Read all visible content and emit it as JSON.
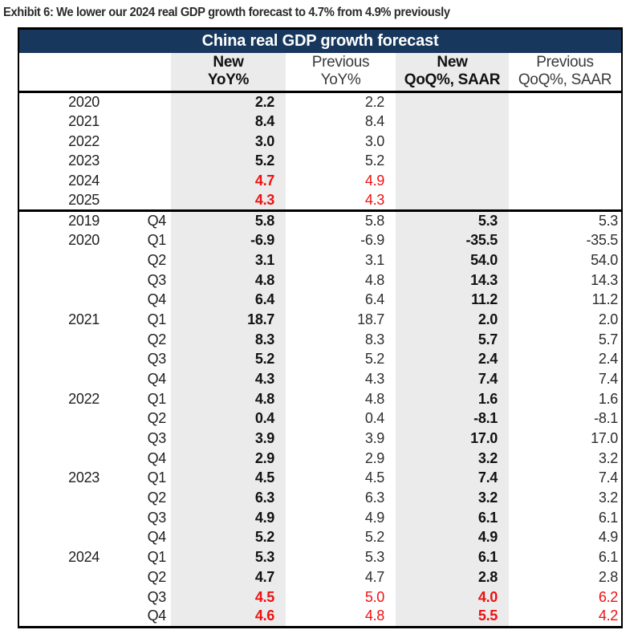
{
  "exhibit_title": "Exhibit 6: We lower our 2024 real GDP growth forecast to 4.7% from 4.9% previously",
  "table": {
    "title": "China real GDP growth forecast",
    "columns": {
      "year_header": "",
      "quarter_header": "",
      "new_yoy": {
        "line1": "New",
        "line2": "YoY%"
      },
      "prev_yoy": {
        "line1": "Previous",
        "line2": "YoY%"
      },
      "new_qoq": {
        "line1": "New",
        "line2": "QoQ%, SAAR"
      },
      "prev_qoq": {
        "line1": "Previous",
        "line2": "QoQ%, SAAR"
      }
    },
    "annual_rows": [
      {
        "year": "2020",
        "quarter": "",
        "new_yoy": "2.2",
        "prev_yoy": "2.2",
        "new_qoq": "",
        "prev_qoq": "",
        "revised": false
      },
      {
        "year": "2021",
        "quarter": "",
        "new_yoy": "8.4",
        "prev_yoy": "8.4",
        "new_qoq": "",
        "prev_qoq": "",
        "revised": false
      },
      {
        "year": "2022",
        "quarter": "",
        "new_yoy": "3.0",
        "prev_yoy": "3.0",
        "new_qoq": "",
        "prev_qoq": "",
        "revised": false
      },
      {
        "year": "2023",
        "quarter": "",
        "new_yoy": "5.2",
        "prev_yoy": "5.2",
        "new_qoq": "",
        "prev_qoq": "",
        "revised": false
      },
      {
        "year": "2024",
        "quarter": "",
        "new_yoy": "4.7",
        "prev_yoy": "4.9",
        "new_qoq": "",
        "prev_qoq": "",
        "revised": true
      },
      {
        "year": "2025",
        "quarter": "",
        "new_yoy": "4.3",
        "prev_yoy": "4.3",
        "new_qoq": "",
        "prev_qoq": "",
        "revised": true
      }
    ],
    "quarterly_rows": [
      {
        "year": "2019",
        "quarter": "Q4",
        "new_yoy": "5.8",
        "prev_yoy": "5.8",
        "new_qoq": "5.3",
        "prev_qoq": "5.3",
        "revised": false
      },
      {
        "year": "2020",
        "quarter": "Q1",
        "new_yoy": "-6.9",
        "prev_yoy": "-6.9",
        "new_qoq": "-35.5",
        "prev_qoq": "-35.5",
        "revised": false
      },
      {
        "year": "",
        "quarter": "Q2",
        "new_yoy": "3.1",
        "prev_yoy": "3.1",
        "new_qoq": "54.0",
        "prev_qoq": "54.0",
        "revised": false
      },
      {
        "year": "",
        "quarter": "Q3",
        "new_yoy": "4.8",
        "prev_yoy": "4.8",
        "new_qoq": "14.3",
        "prev_qoq": "14.3",
        "revised": false
      },
      {
        "year": "",
        "quarter": "Q4",
        "new_yoy": "6.4",
        "prev_yoy": "6.4",
        "new_qoq": "11.2",
        "prev_qoq": "11.2",
        "revised": false
      },
      {
        "year": "2021",
        "quarter": "Q1",
        "new_yoy": "18.7",
        "prev_yoy": "18.7",
        "new_qoq": "2.0",
        "prev_qoq": "2.0",
        "revised": false
      },
      {
        "year": "",
        "quarter": "Q2",
        "new_yoy": "8.3",
        "prev_yoy": "8.3",
        "new_qoq": "5.7",
        "prev_qoq": "5.7",
        "revised": false
      },
      {
        "year": "",
        "quarter": "Q3",
        "new_yoy": "5.2",
        "prev_yoy": "5.2",
        "new_qoq": "2.4",
        "prev_qoq": "2.4",
        "revised": false
      },
      {
        "year": "",
        "quarter": "Q4",
        "new_yoy": "4.3",
        "prev_yoy": "4.3",
        "new_qoq": "7.4",
        "prev_qoq": "7.4",
        "revised": false
      },
      {
        "year": "2022",
        "quarter": "Q1",
        "new_yoy": "4.8",
        "prev_yoy": "4.8",
        "new_qoq": "1.6",
        "prev_qoq": "1.6",
        "revised": false
      },
      {
        "year": "",
        "quarter": "Q2",
        "new_yoy": "0.4",
        "prev_yoy": "0.4",
        "new_qoq": "-8.1",
        "prev_qoq": "-8.1",
        "revised": false
      },
      {
        "year": "",
        "quarter": "Q3",
        "new_yoy": "3.9",
        "prev_yoy": "3.9",
        "new_qoq": "17.0",
        "prev_qoq": "17.0",
        "revised": false
      },
      {
        "year": "",
        "quarter": "Q4",
        "new_yoy": "2.9",
        "prev_yoy": "2.9",
        "new_qoq": "3.2",
        "prev_qoq": "3.2",
        "revised": false
      },
      {
        "year": "2023",
        "quarter": "Q1",
        "new_yoy": "4.5",
        "prev_yoy": "4.5",
        "new_qoq": "7.4",
        "prev_qoq": "7.4",
        "revised": false
      },
      {
        "year": "",
        "quarter": "Q2",
        "new_yoy": "6.3",
        "prev_yoy": "6.3",
        "new_qoq": "3.2",
        "prev_qoq": "3.2",
        "revised": false
      },
      {
        "year": "",
        "quarter": "Q3",
        "new_yoy": "4.9",
        "prev_yoy": "4.9",
        "new_qoq": "6.1",
        "prev_qoq": "6.1",
        "revised": false
      },
      {
        "year": "",
        "quarter": "Q4",
        "new_yoy": "5.2",
        "prev_yoy": "5.2",
        "new_qoq": "4.9",
        "prev_qoq": "4.9",
        "revised": false
      },
      {
        "year": "2024",
        "quarter": "Q1",
        "new_yoy": "5.3",
        "prev_yoy": "5.3",
        "new_qoq": "6.1",
        "prev_qoq": "6.1",
        "revised": false
      },
      {
        "year": "",
        "quarter": "Q2",
        "new_yoy": "4.7",
        "prev_yoy": "4.7",
        "new_qoq": "2.8",
        "prev_qoq": "2.8",
        "revised": false
      },
      {
        "year": "",
        "quarter": "Q3",
        "new_yoy": "4.5",
        "prev_yoy": "5.0",
        "new_qoq": "4.0",
        "prev_qoq": "6.2",
        "revised": true
      },
      {
        "year": "",
        "quarter": "Q4",
        "new_yoy": "4.6",
        "prev_yoy": "4.8",
        "new_qoq": "5.5",
        "prev_qoq": "4.2",
        "revised": true
      }
    ],
    "colors": {
      "header_bg": "#17375d",
      "header_text": "#ffffff",
      "new_column_bg": "#ebebeb",
      "revised_text": "#ee1111",
      "body_text": "#1f1f1f",
      "border": "#000000"
    }
  }
}
